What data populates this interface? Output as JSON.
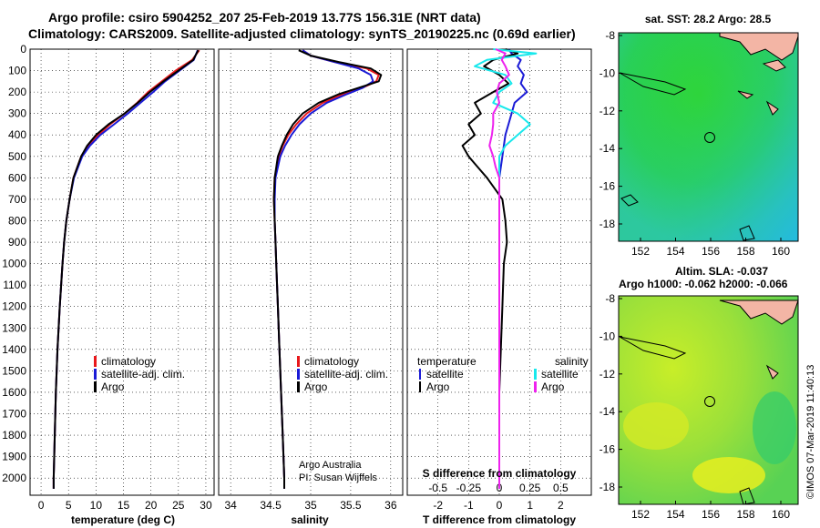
{
  "titles": {
    "line1": "Argo profile: csiro 5904252_207 25-Feb-2019 13.77S 156.31E (NRT data)",
    "line2": "Climatology: CARS2009. Satellite-adjusted climatology: synTS_20190225.nc (0.69d earlier)"
  },
  "colors": {
    "climatology": "#e8181c",
    "satellite": "#1a1ad6",
    "argo": "#000000",
    "sal_satellite": "#18e8ec",
    "sal_argo": "#ee22ee"
  },
  "chart_data": [
    {
      "type": "line",
      "title": "",
      "xlabel": "temperature (deg C)",
      "ylabel": "",
      "xlim": [
        -2,
        31.5
      ],
      "ylim": [
        0,
        2080
      ],
      "x_ticks": [
        0,
        5,
        10,
        15,
        20,
        25,
        30
      ],
      "y_ticks": [
        0,
        100,
        200,
        300,
        400,
        500,
        600,
        700,
        800,
        900,
        1000,
        1100,
        1200,
        1300,
        1400,
        1500,
        1600,
        1700,
        1800,
        1900,
        2000
      ],
      "depth": [
        5,
        50,
        100,
        150,
        200,
        250,
        300,
        350,
        400,
        450,
        500,
        600,
        700,
        800,
        900,
        1000,
        1200,
        1400,
        1600,
        1800,
        2000,
        2050
      ],
      "series": [
        {
          "name": "climatology",
          "values": [
            28.8,
            27.5,
            24.5,
            22.0,
            19.5,
            17.5,
            15.2,
            12.6,
            10.4,
            8.6,
            7.3,
            5.9,
            5.2,
            4.6,
            4.2,
            3.9,
            3.4,
            3.0,
            2.7,
            2.5,
            2.3,
            2.3
          ]
        },
        {
          "name": "satellite-adj. clim.",
          "values": [
            28.5,
            27.8,
            25.2,
            22.6,
            20.4,
            18.1,
            15.8,
            13.3,
            10.8,
            8.9,
            7.5,
            6.0,
            5.2,
            4.6,
            4.2,
            3.9,
            3.4,
            3.0,
            2.7,
            2.5,
            2.3,
            2.3
          ]
        },
        {
          "name": "Argo",
          "values": [
            28.6,
            27.7,
            25.0,
            22.3,
            19.8,
            17.6,
            15.2,
            12.3,
            10.0,
            8.4,
            7.3,
            5.9,
            5.2,
            4.6,
            4.2,
            3.9,
            3.4,
            3.0,
            2.7,
            2.5,
            2.3,
            2.3
          ]
        }
      ],
      "legend": [
        "climatology",
        "satellite-adj. clim.",
        "Argo"
      ]
    },
    {
      "type": "line",
      "title": "",
      "xlabel": "salinity",
      "ylabel": "",
      "xlim": [
        33.85,
        36.15
      ],
      "ylim": [
        0,
        2080
      ],
      "x_ticks": [
        34,
        34.5,
        35,
        35.5,
        36
      ],
      "depth": [
        5,
        30,
        60,
        90,
        120,
        150,
        180,
        210,
        250,
        300,
        350,
        400,
        450,
        500,
        600,
        700,
        800,
        900,
        1000,
        1200,
        1400,
        1600,
        1800,
        2000,
        2050
      ],
      "series": [
        {
          "name": "climatology",
          "values": [
            34.9,
            35.0,
            35.3,
            35.7,
            35.85,
            35.82,
            35.65,
            35.4,
            35.15,
            34.95,
            34.82,
            34.72,
            34.65,
            34.6,
            34.55,
            34.54,
            34.55,
            34.56,
            34.57,
            34.59,
            34.61,
            34.63,
            34.65,
            34.67,
            34.67
          ]
        },
        {
          "name": "satellite-adj. clim.",
          "values": [
            34.9,
            35.0,
            35.3,
            35.6,
            35.75,
            35.78,
            35.65,
            35.45,
            35.2,
            35.0,
            34.86,
            34.76,
            34.68,
            34.62,
            34.56,
            34.55,
            34.55,
            34.56,
            34.57,
            34.59,
            34.61,
            34.63,
            34.65,
            34.67,
            34.67
          ]
        },
        {
          "name": "Argo",
          "values": [
            34.85,
            35.0,
            35.35,
            35.75,
            35.88,
            35.85,
            35.6,
            35.35,
            35.1,
            34.9,
            34.78,
            34.7,
            34.64,
            34.59,
            34.55,
            34.54,
            34.55,
            34.56,
            34.57,
            34.59,
            34.61,
            34.63,
            34.65,
            34.67,
            34.67
          ]
        }
      ],
      "legend": [
        "climatology",
        "satellite-adj. clim.",
        "Argo"
      ],
      "annotations": [
        "Argo Australia",
        "PI: Susan Wijffels"
      ]
    },
    {
      "type": "line",
      "title": "",
      "xlabel": "T difference from climatology",
      "ylabel": "",
      "xlim": [
        -3,
        3
      ],
      "ylim": [
        0,
        2080
      ],
      "x_ticks": [
        -2,
        -1,
        0,
        1,
        2
      ],
      "x_ticks_top": [
        "-0.5",
        "-0.25",
        "0",
        "0.25",
        "0.5"
      ],
      "top_label": "S difference from climatology",
      "depth": [
        0,
        20,
        50,
        80,
        120,
        160,
        200,
        250,
        300,
        350,
        400,
        450,
        500,
        550,
        600,
        700,
        800,
        900,
        1000,
        1200,
        1400,
        1600,
        1800,
        2000,
        2050
      ],
      "series": [
        {
          "name": "temperature satellite",
          "values": [
            0.3,
            0.4,
            0.7,
            0.6,
            0.8,
            0.7,
            0.9,
            0.5,
            0.4,
            0.3,
            0.2,
            0.15,
            0.1,
            0.05,
            0.0,
            0.0,
            0.0,
            0.0,
            0.0,
            0.0,
            0.0,
            0.0,
            0.0,
            0.0,
            0.0
          ]
        },
        {
          "name": "temperature Argo",
          "values": [
            0.2,
            0.6,
            -0.2,
            -0.5,
            0.0,
            0.3,
            -0.2,
            -0.8,
            -0.6,
            -1.0,
            -0.8,
            -1.2,
            -1.0,
            -0.7,
            -0.4,
            0.1,
            0.2,
            0.25,
            0.15,
            0.1,
            0.05,
            0.0,
            0.0,
            0.0,
            0.0
          ]
        },
        {
          "name": "salinity satellite",
          "values": [
            -0.05,
            0.3,
            -0.1,
            -0.2,
            0.05,
            0.1,
            0.0,
            -0.05,
            0.15,
            0.25,
            0.15,
            0.05,
            0.0,
            0.0,
            0.0,
            0.0,
            0.0,
            0.0,
            0.0,
            0.0,
            0.0,
            0.0,
            0.0,
            0.0,
            0.0
          ]
        },
        {
          "name": "salinity Argo",
          "values": [
            -0.03,
            0.05,
            0.02,
            0.05,
            0.08,
            0.0,
            -0.02,
            0.0,
            -0.05,
            -0.05,
            -0.06,
            -0.08,
            -0.05,
            -0.03,
            0.0,
            0.0,
            0.0,
            0.0,
            0.0,
            0.0,
            0.0,
            0.0,
            0.0,
            0.0,
            0.0
          ]
        }
      ],
      "legend_left_title": "temperature",
      "legend_right_title": "salinity",
      "legend_left": [
        "satellite",
        "Argo"
      ],
      "legend_right": [
        "satellite",
        "Argo"
      ]
    }
  ],
  "maps": {
    "top": {
      "title": "sat. SST: 28.2  Argo: 28.5",
      "y_ticks": [
        "-8",
        "-10",
        "-12",
        "-14",
        "-16",
        "-18"
      ],
      "x_ticks": [
        "152",
        "154",
        "156",
        "158",
        "160"
      ],
      "float_position": "13.77S 156.31E"
    },
    "bottom": {
      "title_line1": "Altim. SLA: -0.037",
      "title_line2": "Argo h1000: -0.062 h2000: -0.066",
      "y_ticks": [
        "-8",
        "-10",
        "-12",
        "-14",
        "-16",
        "-18"
      ],
      "x_ticks": [
        "152",
        "154",
        "156",
        "158",
        "160"
      ]
    }
  },
  "watermark": "©IMOS 07-Mar-2019 11:40:13"
}
